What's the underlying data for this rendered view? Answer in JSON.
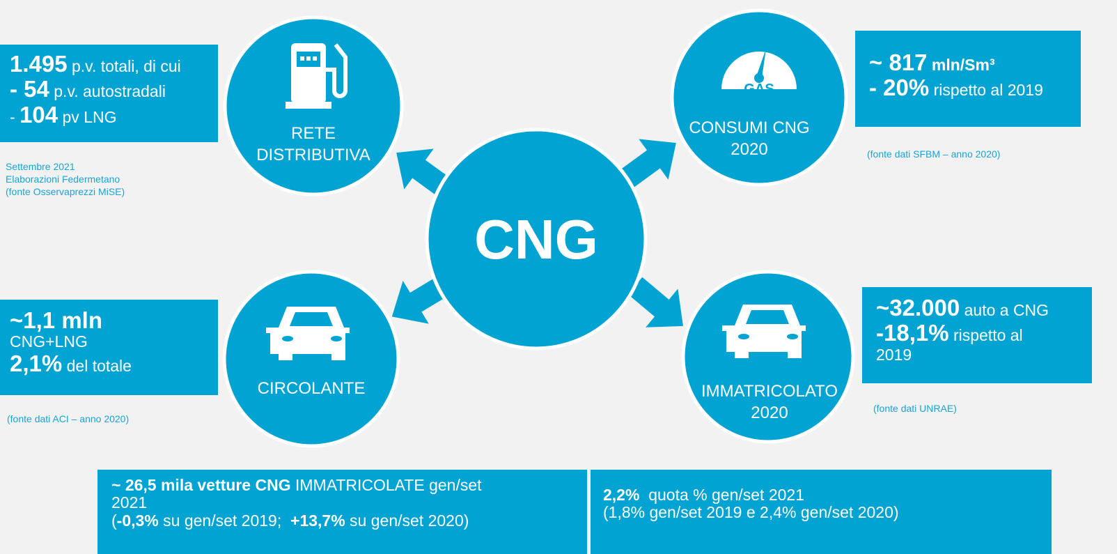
{
  "center": "CNG",
  "rete": {
    "label": [
      "RETE",
      "DISTRIBUTIVA"
    ],
    "box": [
      [
        {
          "big": "1.495"
        },
        {
          "normal": " p.v. totali, di cui"
        }
      ],
      [
        {
          "big": "- 54"
        },
        {
          "normal": " p.v. autostradali"
        }
      ],
      [
        {
          "normal": "- "
        },
        {
          "big": "104"
        },
        {
          "normal": " pv LNG"
        }
      ]
    ],
    "source": [
      "Settembre 2021",
      "Elaborazioni Federmetano",
      "(fonte Osservaprezzi MiSE)"
    ]
  },
  "consumi": {
    "label": [
      "CONSUMI CNG",
      "2020"
    ],
    "box": [
      [
        {
          "big": "~ 817"
        },
        {
          "bold": " mln/Sm³"
        }
      ],
      [
        {
          "big": "- 20%"
        },
        {
          "normal": " rispetto al 2019"
        }
      ]
    ],
    "source": [
      "(fonte dati SFBM – anno 2020)"
    ]
  },
  "circolante": {
    "label": [
      "CIRCOLANTE"
    ],
    "box": [
      [
        {
          "big": "~1,1 mln"
        }
      ],
      [
        {
          "normal": "CNG+LNG"
        }
      ],
      [
        {
          "big": "2,1%"
        },
        {
          "normal": " del totale"
        }
      ]
    ],
    "source": [
      "(fonte dati ACI – anno 2020)"
    ]
  },
  "immatricolato": {
    "label": [
      "IMMATRICOLATO",
      "2020"
    ],
    "box": [
      [
        {
          "big": "~32.000"
        },
        {
          "normal": " auto a CNG"
        }
      ],
      [
        {
          "big": "-18,1%"
        },
        {
          "normal": " rispetto al"
        }
      ],
      [
        {
          "normal": "2019"
        }
      ]
    ],
    "source": [
      "(fonte dati UNRAE)"
    ]
  },
  "bottom_left": [
    [
      {
        "bold": "~ 26,5 mila vetture CNG"
      },
      {
        "normal": " IMMATRICOLATE gen/set"
      }
    ],
    [
      {
        "normal": "2021"
      }
    ],
    [
      {
        "normal": "("
      },
      {
        "bold": "-0,3%"
      },
      {
        "normal": " su gen/set 2019;  "
      },
      {
        "bold": "+13,7%"
      },
      {
        "normal": " su gen/set 2020)"
      }
    ]
  ],
  "bottom_right": [
    [
      {
        "bold": "2,2%"
      },
      {
        "normal": "  quota % gen/set 2021"
      }
    ],
    [
      {
        "normal": "(1,8% gen/set 2019 e 2,4% gen/set 2020)"
      }
    ]
  ]
}
